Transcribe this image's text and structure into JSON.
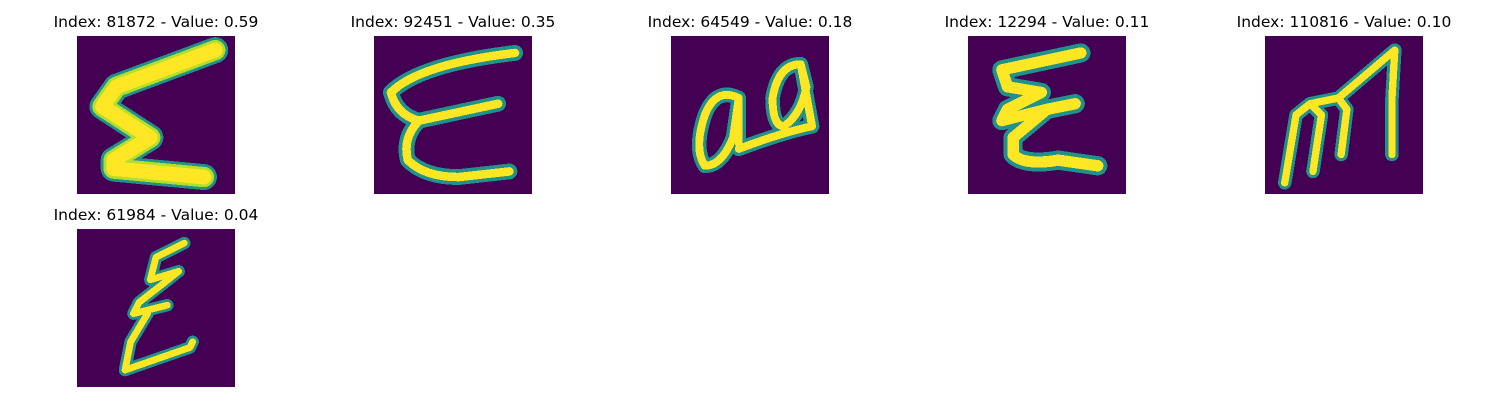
{
  "panels": [
    {
      "title": "Index: 81872 - Value: 0.59",
      "glyph": "letter-e-thick-zigzag"
    },
    {
      "title": "Index: 92451 - Value: 0.35",
      "glyph": "letter-e-curved"
    },
    {
      "title": "Index: 64549 - Value: 0.18",
      "glyph": "letters-aa-loops"
    },
    {
      "title": "Index: 12294 - Value: 0.11",
      "glyph": "letter-e-zigzag"
    },
    {
      "title": "Index: 110816 - Value: 0.10",
      "glyph": "letter-m-slanted"
    },
    {
      "title": "Index: 61984 - Value: 0.04",
      "glyph": "letter-e-thin-zigzag"
    }
  ],
  "colors": {
    "background": "#440154",
    "stroke_core": "#fde725",
    "stroke_mid": "#b5de2b",
    "stroke_edge": "#21918c"
  }
}
